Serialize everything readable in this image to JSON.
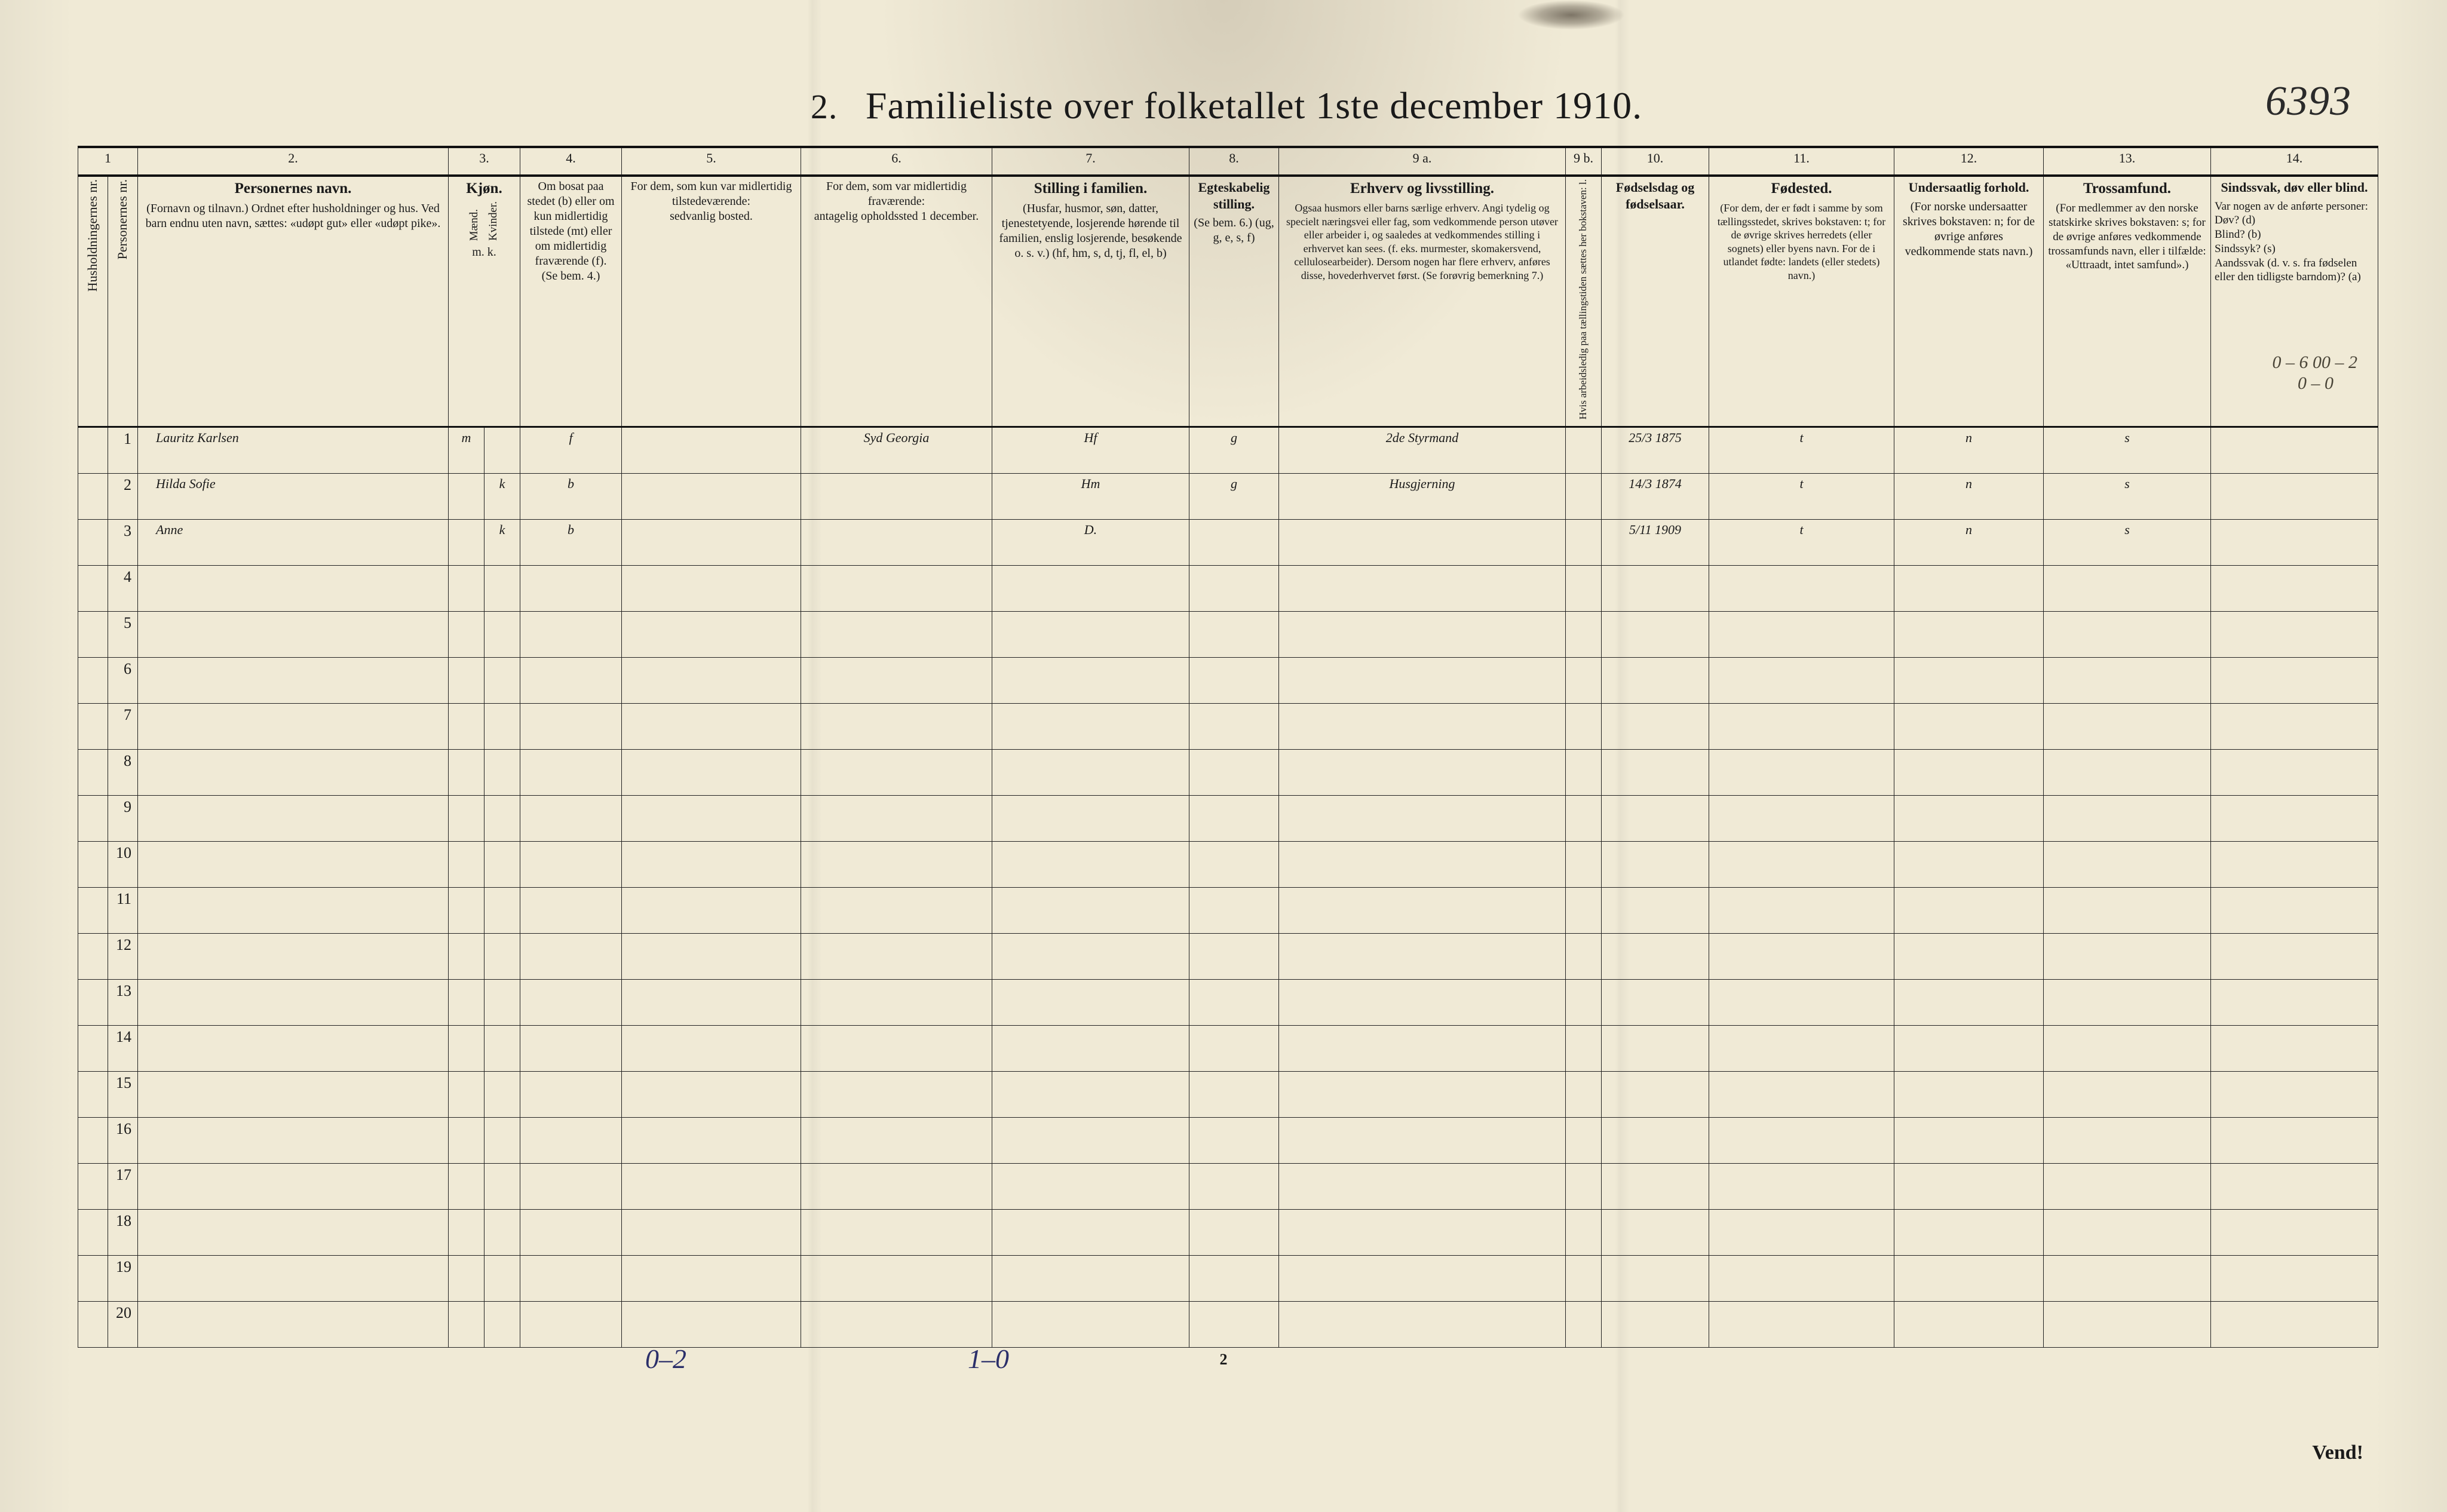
{
  "document": {
    "title_prefix": "2.",
    "title_main": "Familieliste over folketallet 1ste december 1910.",
    "handwritten_top_right": "6393",
    "page_number_bottom": "2",
    "vend_label": "Vend!",
    "bottom_annot_left": "0–2",
    "bottom_annot_mid": "1–0",
    "margin_annot_topright_1": "0 – 6 00 – 2",
    "margin_annot_topright_2": "0 –   0"
  },
  "columns": {
    "nums": [
      "1",
      "",
      "2.",
      "3.",
      "4.",
      "5.",
      "6.",
      "7.",
      "8.",
      "9 a.",
      "9 b.",
      "10.",
      "11.",
      "12.",
      "13.",
      "14."
    ],
    "h1_vert": "Husholdningernes nr.",
    "h1b_vert": "Personernes nr.",
    "h2_title": "Personernes navn.",
    "h2_sub": "(Fornavn og tilnavn.)\nOrdnet efter husholdninger og hus.\nVed barn endnu uten navn, sættes: «udøpt gut» eller «udøpt pike».",
    "h3_title": "Kjøn.",
    "h3_sub_a": "Mænd.",
    "h3_sub_b": "Kvinder.",
    "h3_foot": "m.  k.",
    "h4_title": "Om bosat paa stedet (b) eller om kun midlertidig tilstede (mt) eller om midlertidig fraværende (f).",
    "h4_foot": "(Se bem. 4.)",
    "h5_title": "For dem, som kun var midlertidig tilstedeværende:",
    "h5_sub": "sedvanlig bosted.",
    "h6_title": "For dem, som var midlertidig fraværende:",
    "h6_sub": "antagelig opholdssted 1 december.",
    "h7_title": "Stilling i familien.",
    "h7_sub": "(Husfar, husmor, søn, datter, tjenestetyende, losjerende hørende til familien, enslig losjerende, besøkende o. s. v.)\n(hf, hm, s, d, tj, fl, el, b)",
    "h8_title": "Egteskabelig stilling.",
    "h8_sub": "(Se bem. 6.)\n(ug, g, e, s, f)",
    "h9a_title": "Erhverv og livsstilling.",
    "h9a_sub": "Ogsaa husmors eller barns særlige erhverv. Angi tydelig og specielt næringsvei eller fag, som vedkommende person utøver eller arbeider i, og saaledes at vedkommendes stilling i erhvervet kan sees. (f. eks. murmester, skomakersvend, cellulosearbeider). Dersom nogen har flere erhverv, anføres disse, hovederhvervet først.\n(Se forøvrig bemerkning 7.)",
    "h9b_vert": "Hvis arbeidsledig paa tællingstiden sættes her bokstaven: l.",
    "h10_title": "Fødselsdag og fødselsaar.",
    "h11_title": "Fødested.",
    "h11_sub": "(For dem, der er født i samme by som tællingsstedet, skrives bokstaven: t; for de øvrige skrives herredets (eller sognets) eller byens navn. For de i utlandet fødte: landets (eller stedets) navn.)",
    "h12_title": "Undersaatlig forhold.",
    "h12_sub": "(For norske undersaatter skrives bokstaven: n; for de øvrige anføres vedkommende stats navn.)",
    "h13_title": "Trossamfund.",
    "h13_sub": "(For medlemmer av den norske statskirke skrives bokstaven: s; for de øvrige anføres vedkommende trossamfunds navn, eller i tilfælde: «Uttraadt, intet samfund».)",
    "h14_title": "Sindssvak, døv eller blind.",
    "h14_sub": "Var nogen av de anførte personer:\nDøv?        (d)\nBlind?      (b)\nSindssyk?   (s)\nAandssvak (d. v. s. fra fødselen eller den tidligste barndom)?  (a)"
  },
  "rows": [
    {
      "num": "1",
      "name": "Lauritz Karlsen",
      "sex_m": "m",
      "sex_k": "",
      "res": "f",
      "col5": "",
      "col6": "Syd Georgia",
      "col7": "Hf",
      "col8": "g",
      "col9a": "2de Styrmand",
      "col9b": "",
      "col10": "25/3 1875",
      "col11": "t",
      "col12": "n",
      "col13": "s",
      "col14": ""
    },
    {
      "num": "2",
      "name": "Hilda Sofie",
      "sex_m": "",
      "sex_k": "k",
      "res": "b",
      "col5": "",
      "col6": "",
      "col7": "Hm",
      "col8": "g",
      "col9a": "Husgjerning",
      "col9b": "",
      "col10": "14/3 1874",
      "col11": "t",
      "col12": "n",
      "col13": "s",
      "col14": ""
    },
    {
      "num": "3",
      "name": "Anne",
      "sex_m": "",
      "sex_k": "k",
      "res": "b",
      "col5": "",
      "col6": "",
      "col7": "D.",
      "col8": "",
      "col9a": "",
      "col9b": "",
      "col10": "5/11 1909",
      "col11": "t",
      "col12": "n",
      "col13": "s",
      "col14": ""
    },
    {
      "num": "4"
    },
    {
      "num": "5"
    },
    {
      "num": "6"
    },
    {
      "num": "7"
    },
    {
      "num": "8"
    },
    {
      "num": "9"
    },
    {
      "num": "10"
    },
    {
      "num": "11"
    },
    {
      "num": "12"
    },
    {
      "num": "13"
    },
    {
      "num": "14"
    },
    {
      "num": "15"
    },
    {
      "num": "16"
    },
    {
      "num": "17"
    },
    {
      "num": "18"
    },
    {
      "num": "19"
    },
    {
      "num": "20"
    }
  ],
  "style": {
    "page_bg": "#f0ead6",
    "ink": "#1a1a1a",
    "handwriting_color": "#3a362c",
    "blue_ink": "#2b2f6a",
    "rule_thick": 4,
    "rule_thin": 1,
    "title_fontsize": 58,
    "header_fontsize": 22,
    "body_row_height": 70,
    "handwriting_fontsize": 34
  }
}
